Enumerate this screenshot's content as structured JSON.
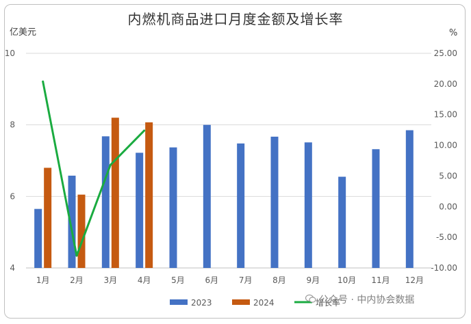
{
  "chart_data": {
    "type": "bar",
    "title": "内燃机商品进口月度金额及增长率",
    "ylabel": "亿美元",
    "y2label": "%",
    "categories": [
      "1月",
      "2月",
      "3月",
      "4月",
      "5月",
      "6月",
      "7月",
      "8月",
      "9月",
      "10月",
      "11月",
      "12月"
    ],
    "ylim": [
      4,
      10
    ],
    "y2lim": [
      -10,
      25
    ],
    "yticks": [
      "4",
      "6",
      "8",
      "10"
    ],
    "y2ticks": [
      "-10.00",
      "-5.00",
      "0.00",
      "5.00",
      "10.00",
      "15.00",
      "20.00",
      "25.00"
    ],
    "grid": true,
    "legend_position": "bottom",
    "series": [
      {
        "name": "2023",
        "kind": "bar",
        "color": "#4472c4",
        "values": [
          5.65,
          6.58,
          7.68,
          7.22,
          7.37,
          8.0,
          7.48,
          7.67,
          7.51,
          6.55,
          7.32,
          7.85
        ]
      },
      {
        "name": "2024",
        "kind": "bar",
        "color": "#c55a11",
        "values": [
          6.8,
          6.05,
          8.2,
          8.07,
          null,
          null,
          null,
          null,
          null,
          null,
          null,
          null
        ]
      },
      {
        "name": "增长率",
        "kind": "line",
        "axis": "right",
        "color": "#1aab40",
        "values": [
          20.4,
          -8.0,
          6.8,
          12.4,
          null,
          null,
          null,
          null,
          null,
          null,
          null,
          null
        ]
      }
    ]
  },
  "watermark": {
    "text": "公众号 · 中内协会数据",
    "icon": "wechat-icon"
  }
}
